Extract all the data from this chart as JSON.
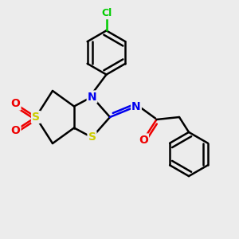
{
  "bg_color": "#ececec",
  "atom_colors": {
    "C": "#000000",
    "N": "#0000ee",
    "S": "#cccc00",
    "O": "#ee0000",
    "Cl": "#00cc00"
  },
  "bond_color": "#000000",
  "bond_width": 1.8,
  "fig_size": [
    3.0,
    3.0
  ],
  "dpi": 100,
  "xlim": [
    0,
    10
  ],
  "ylim": [
    0,
    10
  ]
}
